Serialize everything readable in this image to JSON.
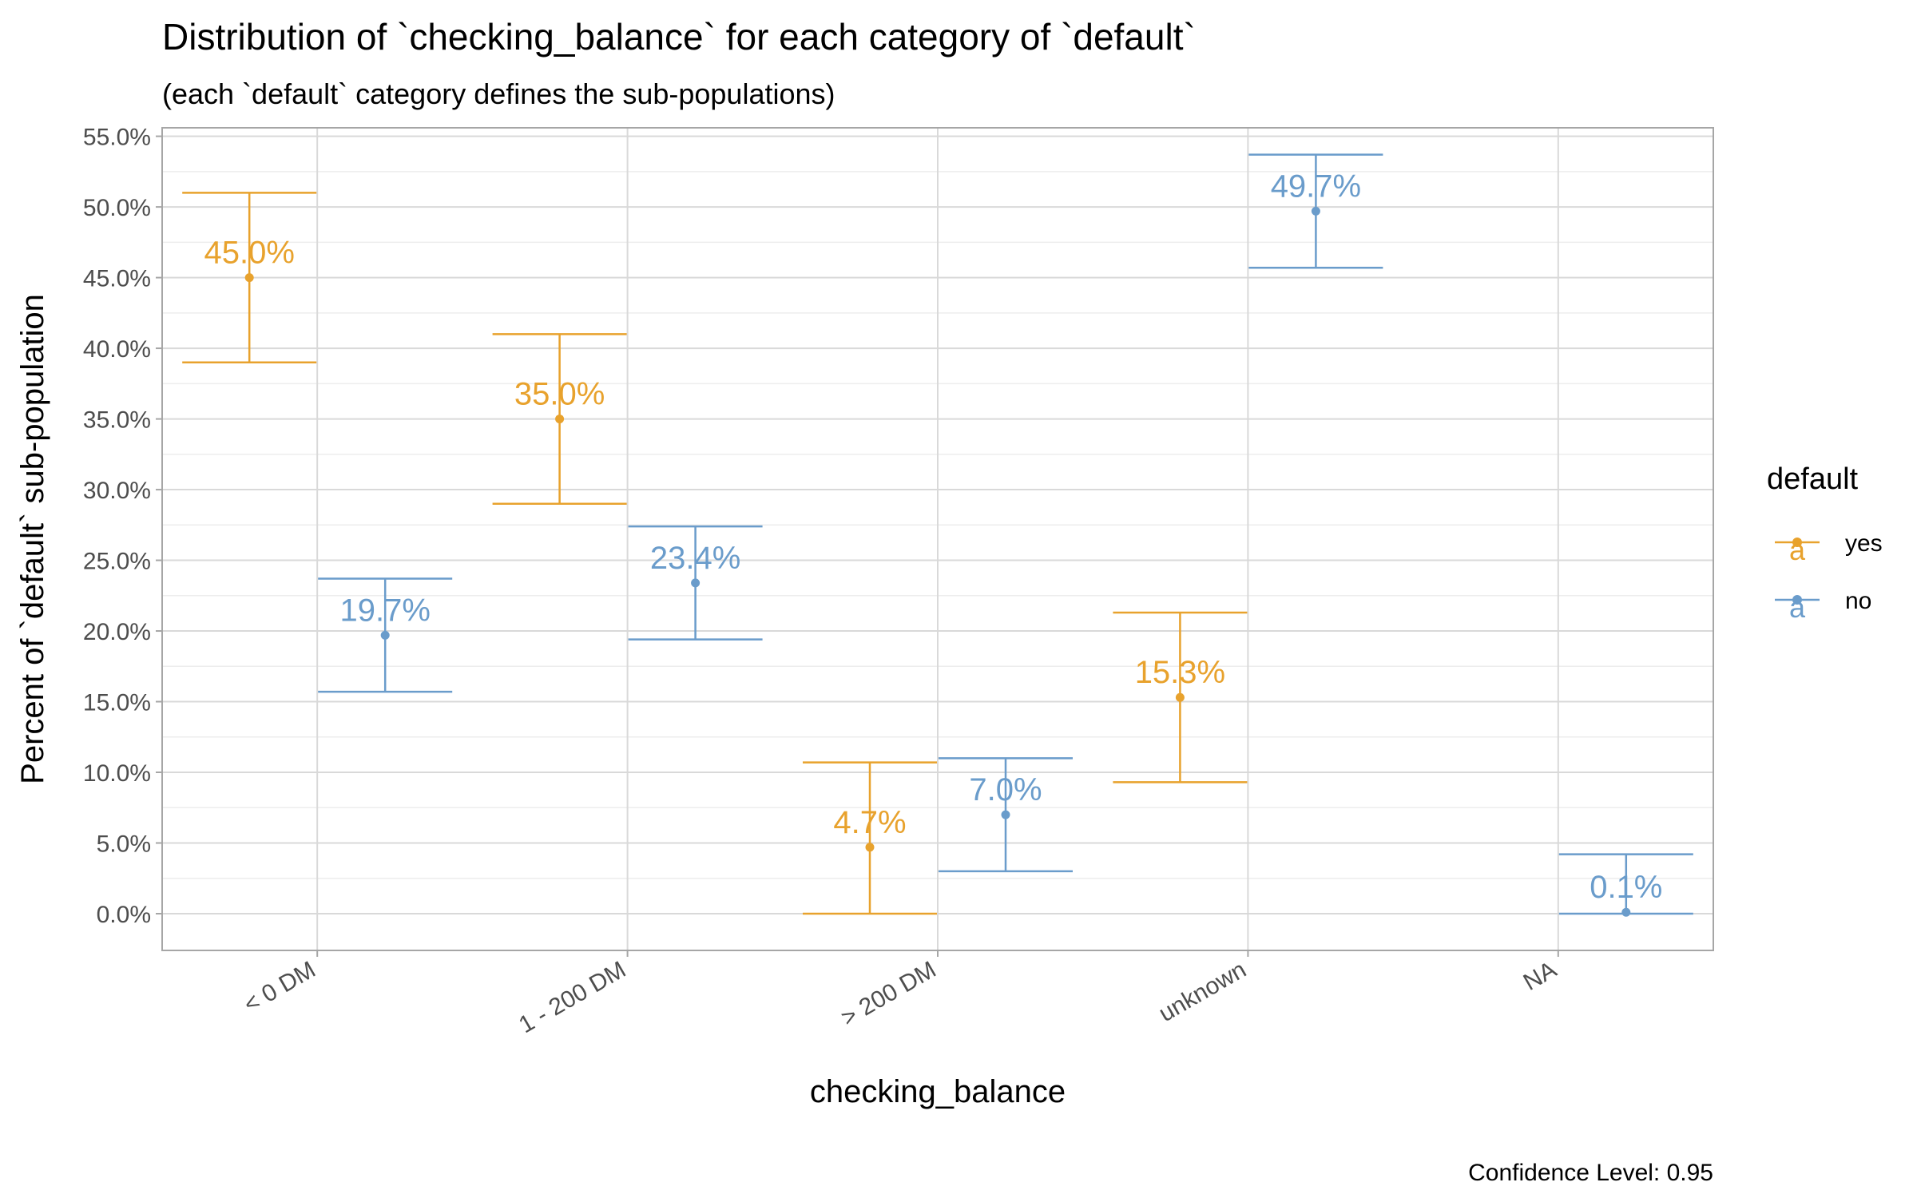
{
  "chart_data": {
    "type": "errorbar",
    "title": "Distribution of `checking_balance` for each category of `default`",
    "subtitle": "(each `default` category defines the sub-populations)",
    "xlabel": "checking_balance",
    "ylabel": "Percent of `default` sub-population",
    "caption": "Confidence Level: 0.95",
    "categories": [
      "< 0 DM",
      "1 - 200 DM",
      "> 200 DM",
      "unknown",
      "NA"
    ],
    "ylim": [
      -2.6,
      55.6
    ],
    "y_ticks": [
      0,
      5,
      10,
      15,
      20,
      25,
      30,
      35,
      40,
      45,
      50,
      55
    ],
    "y_tick_labels": [
      "0.0%",
      "5.0%",
      "10.0%",
      "15.0%",
      "20.0%",
      "25.0%",
      "30.0%",
      "35.0%",
      "40.0%",
      "45.0%",
      "50.0%",
      "55.0%"
    ],
    "grid": true,
    "legend": {
      "title": "default",
      "position": "right",
      "glyph": "a"
    },
    "series": [
      {
        "name": "yes",
        "color": "#E8A22D",
        "points": [
          {
            "category": "< 0 DM",
            "value": 45.0,
            "lower": 39.0,
            "upper": 51.0,
            "label": "45.0%"
          },
          {
            "category": "1 - 200 DM",
            "value": 35.0,
            "lower": 29.0,
            "upper": 41.0,
            "label": "35.0%"
          },
          {
            "category": "> 200 DM",
            "value": 4.7,
            "lower": 0.0,
            "upper": 10.7,
            "label": "4.7%"
          },
          {
            "category": "unknown",
            "value": 15.3,
            "lower": 9.3,
            "upper": 21.3,
            "label": "15.3%"
          }
        ]
      },
      {
        "name": "no",
        "color": "#6A9CCB",
        "points": [
          {
            "category": "< 0 DM",
            "value": 19.7,
            "lower": 15.7,
            "upper": 23.7,
            "label": "19.7%"
          },
          {
            "category": "1 - 200 DM",
            "value": 23.4,
            "lower": 19.4,
            "upper": 27.4,
            "label": "23.4%"
          },
          {
            "category": "> 200 DM",
            "value": 7.0,
            "lower": 3.0,
            "upper": 11.0,
            "label": "7.0%"
          },
          {
            "category": "unknown",
            "value": 49.7,
            "lower": 45.7,
            "upper": 53.7,
            "label": "49.7%"
          },
          {
            "category": "NA",
            "value": 0.1,
            "lower": 0.0,
            "upper": 4.2,
            "label": "0.1%"
          }
        ]
      }
    ]
  }
}
